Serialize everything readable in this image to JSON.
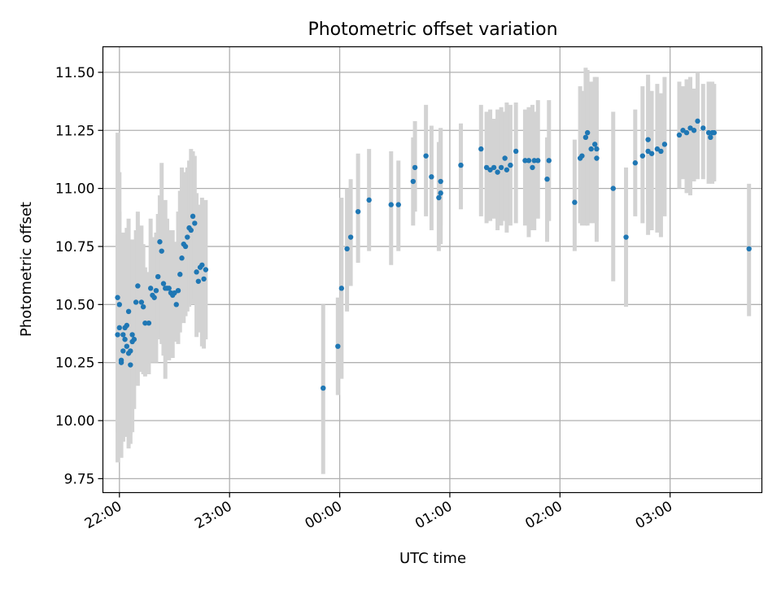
{
  "chart_data": {
    "type": "scatter",
    "title": "Photometric offset variation",
    "xlabel": "UTC time",
    "ylabel": "Photometric offset",
    "x_unit": "UTC time (HH:MM), hours after 22:00 continue past midnight",
    "xlim": [
      "21:51",
      "03:50"
    ],
    "ylim": [
      9.69,
      11.61
    ],
    "x_ticks": [
      "22:00",
      "23:00",
      "00:00",
      "01:00",
      "02:00",
      "03:00"
    ],
    "y_ticks": [
      "9.75",
      "10.00",
      "10.25",
      "10.50",
      "10.75",
      "11.00",
      "11.25",
      "11.50"
    ],
    "grid": true,
    "colors": {
      "points": "#1f77b4",
      "error_bars": "#d3d3d3",
      "grid": "#b0b0b0",
      "axes": "#000000"
    },
    "series": [
      {
        "x": [
          "21:59",
          "21:59",
          "22:00",
          "22:00",
          "22:01",
          "22:01",
          "22:02",
          "22:02",
          "22:03",
          "22:03",
          "22:04",
          "22:04",
          "22:05",
          "22:05",
          "22:06",
          "22:06",
          "22:07",
          "22:07",
          "22:08",
          "22:09",
          "22:10",
          "22:12",
          "22:13",
          "22:14",
          "22:16",
          "22:17",
          "22:18",
          "22:19",
          "22:20",
          "22:21",
          "22:22",
          "22:23",
          "22:24",
          "22:25",
          "22:26",
          "22:27",
          "22:28",
          "22:29",
          "22:30",
          "22:31",
          "22:32",
          "22:33",
          "22:34",
          "22:35",
          "22:36",
          "22:37",
          "22:38",
          "22:39",
          "22:40",
          "22:41",
          "22:42",
          "22:43",
          "22:44",
          "22:45",
          "22:46",
          "22:47",
          "23:51",
          "23:59",
          "00:01",
          "00:04",
          "00:06",
          "00:10",
          "00:16",
          "00:28",
          "00:32",
          "00:40",
          "00:41",
          "00:47",
          "00:50",
          "00:54",
          "00:55",
          "00:55",
          "01:06",
          "01:17",
          "01:20",
          "01:22",
          "01:24",
          "01:26",
          "01:28",
          "01:30",
          "01:31",
          "01:33",
          "01:36",
          "01:41",
          "01:43",
          "01:45",
          "01:46",
          "01:48",
          "01:53",
          "01:54",
          "02:08",
          "02:11",
          "02:12",
          "02:14",
          "02:15",
          "02:17",
          "02:19",
          "02:20",
          "02:20",
          "02:29",
          "02:36",
          "02:41",
          "02:45",
          "02:48",
          "02:48",
          "02:50",
          "02:53",
          "02:55",
          "02:57",
          "03:05",
          "03:07",
          "03:09",
          "03:11",
          "03:13",
          "03:15",
          "03:18",
          "03:21",
          "03:22",
          "03:23",
          "03:24",
          "03:43"
        ],
        "y": [
          10.53,
          10.37,
          10.5,
          10.4,
          10.25,
          10.26,
          10.3,
          10.37,
          10.35,
          10.4,
          10.41,
          10.32,
          10.47,
          10.29,
          10.3,
          10.24,
          10.37,
          10.34,
          10.35,
          10.51,
          10.58,
          10.51,
          10.49,
          10.42,
          10.42,
          10.57,
          10.54,
          10.53,
          10.56,
          10.62,
          10.77,
          10.73,
          10.59,
          10.57,
          10.57,
          10.57,
          10.55,
          10.54,
          10.55,
          10.5,
          10.56,
          10.63,
          10.7,
          10.76,
          10.75,
          10.79,
          10.83,
          10.82,
          10.88,
          10.85,
          10.64,
          10.6,
          10.66,
          10.67,
          10.61,
          10.65,
          10.14,
          10.32,
          10.57,
          10.74,
          10.79,
          10.9,
          10.95,
          10.93,
          10.93,
          11.03,
          11.09,
          11.14,
          11.05,
          10.96,
          10.98,
          11.03,
          11.1,
          11.17,
          11.09,
          11.08,
          11.09,
          11.07,
          11.09,
          11.13,
          11.08,
          11.1,
          11.16,
          11.12,
          11.12,
          11.09,
          11.12,
          11.12,
          11.04,
          11.12,
          10.94,
          11.13,
          11.14,
          11.22,
          11.24,
          11.17,
          11.19,
          11.13,
          11.17,
          11.0,
          10.79,
          11.11,
          11.14,
          11.21,
          11.16,
          11.15,
          11.17,
          11.16,
          11.19,
          11.23,
          11.25,
          11.24,
          11.26,
          11.25,
          11.29,
          11.26,
          11.24,
          11.22,
          11.24,
          11.24,
          10.74
        ],
        "yerr_low": [
          9.82,
          9.95,
          9.86,
          9.97,
          9.84,
          9.9,
          9.91,
          9.91,
          9.93,
          9.95,
          9.99,
          9.98,
          9.98,
          9.88,
          9.9,
          9.94,
          10.05,
          9.95,
          10.05,
          10.2,
          10.15,
          10.21,
          10.2,
          10.19,
          10.2,
          10.27,
          10.25,
          10.3,
          10.25,
          10.39,
          10.35,
          10.33,
          10.28,
          10.18,
          10.28,
          10.26,
          10.3,
          10.27,
          10.34,
          10.35,
          10.33,
          10.38,
          10.45,
          10.42,
          10.45,
          10.47,
          10.49,
          10.5,
          10.5,
          10.52,
          10.36,
          10.38,
          10.42,
          10.32,
          10.31,
          10.35,
          9.77,
          10.11,
          10.18,
          10.47,
          10.58,
          10.68,
          10.73,
          10.67,
          10.73,
          10.84,
          10.9,
          10.88,
          10.82,
          10.73,
          10.76,
          10.84,
          10.91,
          10.88,
          10.85,
          10.86,
          10.87,
          10.82,
          10.84,
          10.86,
          10.81,
          10.84,
          10.85,
          10.84,
          10.79,
          10.82,
          10.82,
          10.87,
          10.77,
          10.86,
          10.73,
          10.85,
          10.84,
          10.84,
          10.84,
          10.85,
          10.85,
          10.77,
          10.86,
          10.6,
          10.49,
          10.88,
          10.85,
          10.93,
          10.8,
          10.82,
          10.81,
          10.79,
          10.88,
          11.0,
          11.04,
          10.98,
          10.97,
          11.03,
          11.04,
          11.04,
          11.02,
          11.03,
          11.02,
          11.03,
          10.45
        ],
        "yerr_high": [
          11.24,
          10.8,
          11.07,
          10.9,
          10.81,
          10.62,
          10.68,
          10.8,
          10.81,
          10.76,
          10.83,
          10.66,
          10.87,
          10.69,
          10.73,
          10.58,
          10.68,
          10.78,
          10.64,
          10.82,
          10.9,
          10.84,
          10.76,
          10.66,
          10.64,
          10.87,
          10.79,
          10.76,
          10.81,
          10.89,
          10.97,
          11.11,
          10.92,
          10.95,
          10.87,
          10.81,
          10.82,
          10.82,
          10.77,
          10.65,
          10.9,
          10.99,
          11.09,
          11.07,
          11.03,
          11.09,
          11.12,
          11.17,
          11.16,
          11.14,
          10.98,
          10.89,
          10.93,
          10.96,
          10.92,
          10.95,
          10.5,
          10.53,
          10.96,
          11.0,
          11.04,
          11.15,
          11.17,
          11.16,
          11.12,
          11.22,
          11.29,
          11.36,
          11.27,
          11.2,
          11.26,
          11.26,
          11.28,
          11.36,
          11.33,
          11.34,
          11.3,
          11.34,
          11.35,
          11.33,
          11.37,
          11.36,
          11.37,
          11.34,
          11.35,
          11.36,
          11.33,
          11.38,
          11.22,
          11.38,
          11.21,
          11.44,
          11.42,
          11.52,
          11.51,
          11.46,
          11.48,
          11.42,
          11.48,
          11.33,
          11.09,
          11.34,
          11.44,
          11.49,
          11.46,
          11.42,
          11.45,
          11.41,
          11.48,
          11.46,
          11.44,
          11.47,
          11.48,
          11.43,
          11.5,
          11.45,
          11.46,
          11.44,
          11.46,
          11.45,
          11.02
        ]
      }
    ]
  }
}
